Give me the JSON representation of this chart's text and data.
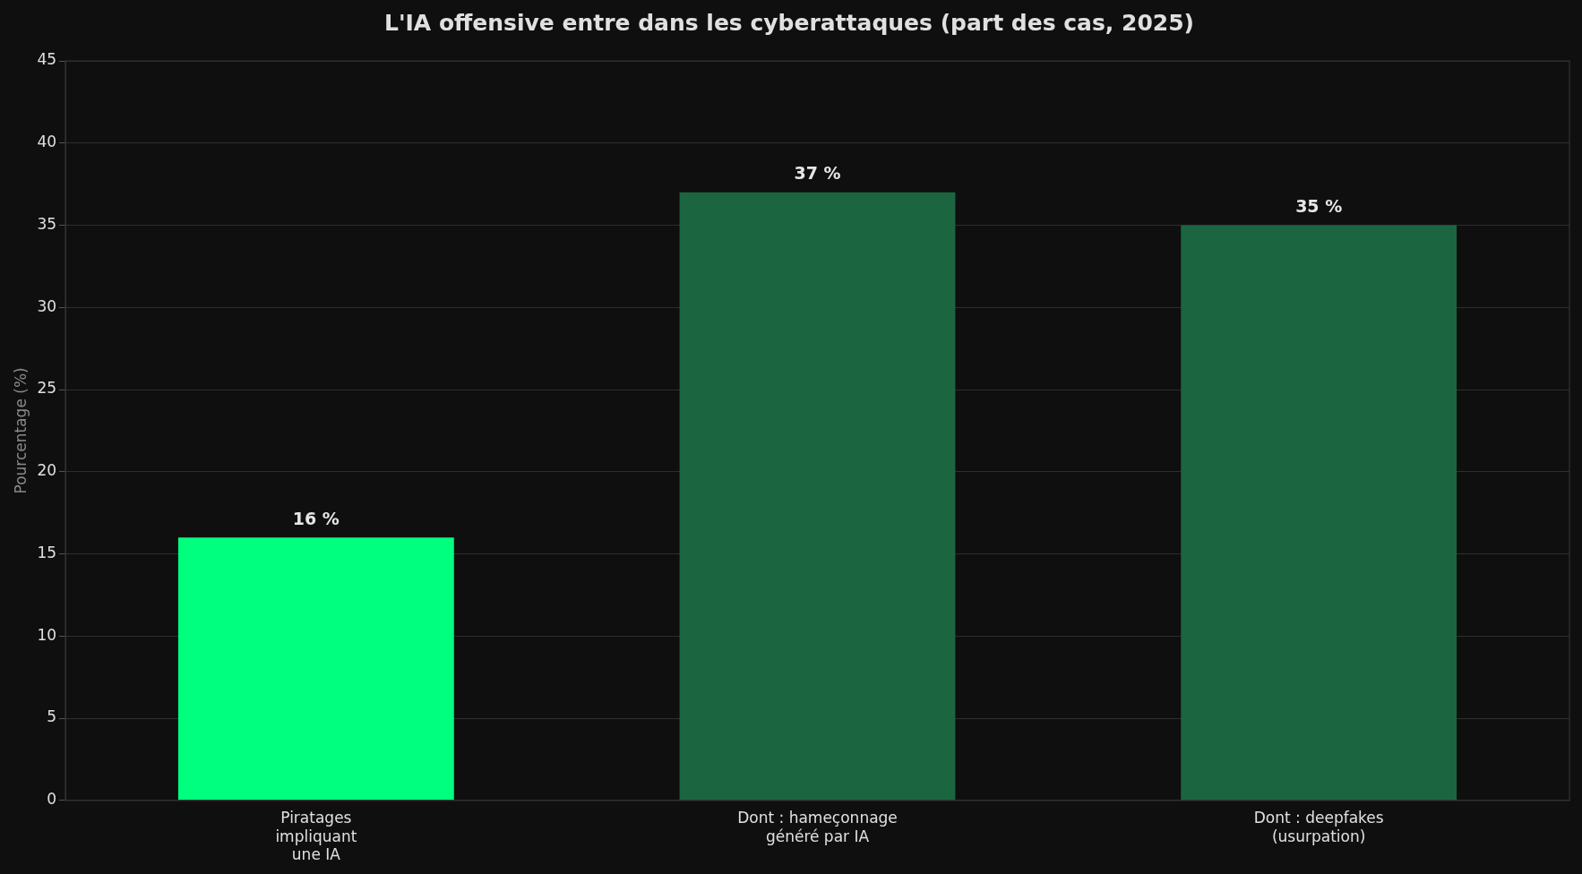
{
  "chart_data": {
    "type": "bar",
    "title": "L'IA offensive entre dans les cyberattaques (part des cas, 2025)",
    "ylabel": "Pourcentage (%)",
    "categories": [
      "Piratages\nimpliquant\nune IA",
      "Dont : hameçonnage\ngénéré par IA",
      "Dont : deepfakes\n(usurpation)"
    ],
    "values": [
      16,
      37,
      35
    ],
    "colors": [
      "#00ff7f",
      "#1b6640",
      "#1b6640"
    ],
    "value_labels": [
      "16 %",
      "37 %",
      "35 %"
    ],
    "ylim": [
      0,
      45
    ],
    "yticks": [
      0,
      5,
      10,
      15,
      20,
      25,
      30,
      35,
      40,
      45
    ],
    "grid": "y",
    "legend": false
  }
}
